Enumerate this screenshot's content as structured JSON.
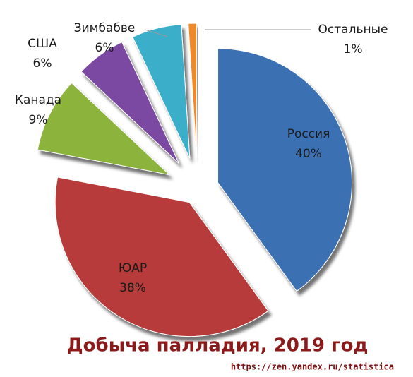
{
  "chart_data": {
    "type": "pie",
    "title": "Добыча палладия, 2019 год",
    "source": "https://zen.yandex.ru/statistica",
    "categories": [
      "Россия",
      "ЮАР",
      "Канада",
      "США",
      "Зимбабве",
      "Остальные"
    ],
    "values": [
      40,
      38,
      9,
      6,
      6,
      1
    ],
    "value_labels": [
      "40%",
      "38%",
      "9%",
      "6%",
      "6%",
      "1%"
    ],
    "colors": [
      "#3b6fb3",
      "#b73b3b",
      "#8cb43e",
      "#7b4aa2",
      "#3aaec9",
      "#f0892a"
    ]
  }
}
